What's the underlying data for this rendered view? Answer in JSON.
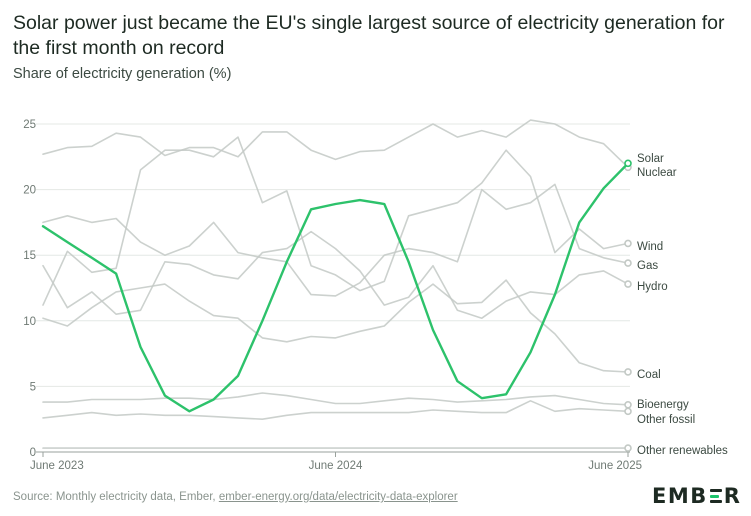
{
  "title": "Solar power just became the EU's single largest source of electricity generation for the first month on record",
  "subtitle": "Share of electricity generation (%)",
  "source": {
    "prefix": "Source: Monthly electricity data, Ember, ",
    "link": "ember-energy.org/data/electricity-data-explorer"
  },
  "logo": {
    "pre": "EMB",
    "post": "R",
    "letters": "EMBER"
  },
  "colors": {
    "solar": "#2dc26b",
    "grey": "#c3c9c5",
    "grid": "#e4e8e5",
    "axis": "#9aa29d",
    "text": "#3c4a42"
  },
  "chart_data": {
    "type": "line",
    "title": "Solar power just became the EU's single largest source of electricity generation for the first month on record",
    "ylabel": "Share of electricity generation (%)",
    "xlabel": "",
    "ylim": [
      0,
      25
    ],
    "yticks": [
      0,
      5,
      10,
      15,
      20,
      25
    ],
    "x": [
      "2023-06",
      "2023-07",
      "2023-08",
      "2023-09",
      "2023-10",
      "2023-11",
      "2023-12",
      "2024-01",
      "2024-02",
      "2024-03",
      "2024-04",
      "2024-05",
      "2024-06",
      "2024-07",
      "2024-08",
      "2024-09",
      "2024-10",
      "2024-11",
      "2024-12",
      "2025-01",
      "2025-02",
      "2025-03",
      "2025-04",
      "2025-05",
      "2025-06"
    ],
    "xticks": [
      {
        "index": 0,
        "label": "June 2023"
      },
      {
        "index": 12,
        "label": "June 2024"
      },
      {
        "index": 24,
        "label": "June 2025"
      }
    ],
    "series": [
      {
        "name": "Nuclear",
        "highlight": false,
        "values": [
          22.7,
          23.2,
          23.3,
          24.3,
          24.0,
          22.6,
          23.2,
          23.2,
          22.5,
          24.4,
          24.4,
          23.0,
          22.3,
          22.9,
          23.0,
          24.0,
          25.0,
          24.0,
          24.5,
          24.0,
          25.3,
          25.0,
          24.0,
          23.5,
          21.7
        ]
      },
      {
        "name": "Wind",
        "highlight": false,
        "values": [
          11.2,
          15.3,
          13.7,
          14.0,
          21.5,
          23.0,
          23.0,
          22.5,
          24.0,
          19.0,
          19.9,
          14.2,
          13.5,
          12.3,
          13.0,
          18.0,
          18.5,
          19.0,
          20.5,
          23.0,
          21.0,
          15.2,
          17.0,
          15.5,
          15.9
        ]
      },
      {
        "name": "Gas",
        "highlight": false,
        "values": [
          17.5,
          18.0,
          17.5,
          17.8,
          16.0,
          15.0,
          15.7,
          17.5,
          15.2,
          14.8,
          14.5,
          12.0,
          11.9,
          12.9,
          15.0,
          15.5,
          15.2,
          14.5,
          20.0,
          18.5,
          19.0,
          20.4,
          15.5,
          14.8,
          14.4
        ]
      },
      {
        "name": "Hydro",
        "highlight": false,
        "values": [
          14.2,
          11.0,
          12.2,
          10.5,
          10.8,
          14.5,
          14.3,
          13.5,
          13.2,
          15.2,
          15.5,
          16.8,
          15.5,
          13.8,
          11.2,
          11.8,
          14.2,
          10.8,
          10.2,
          11.5,
          12.2,
          12.0,
          13.5,
          13.8,
          12.8
        ]
      },
      {
        "name": "Coal",
        "highlight": false,
        "values": [
          10.2,
          9.6,
          11.0,
          12.2,
          12.5,
          12.8,
          11.5,
          10.4,
          10.2,
          8.7,
          8.4,
          8.8,
          8.7,
          9.2,
          9.6,
          11.4,
          12.8,
          11.3,
          11.4,
          13.1,
          10.6,
          9.0,
          6.8,
          6.2,
          6.1
        ]
      },
      {
        "name": "Bioenergy",
        "highlight": false,
        "values": [
          3.8,
          3.8,
          4.0,
          4.0,
          4.0,
          4.1,
          4.1,
          4.0,
          4.2,
          4.5,
          4.3,
          4.0,
          3.7,
          3.7,
          3.9,
          4.1,
          4.0,
          3.8,
          3.9,
          4.0,
          4.2,
          4.3,
          4.0,
          3.7,
          3.6
        ]
      },
      {
        "name": "Other fossil",
        "highlight": false,
        "values": [
          2.6,
          2.8,
          3.0,
          2.8,
          2.9,
          2.8,
          2.8,
          2.7,
          2.6,
          2.5,
          2.8,
          3.0,
          3.0,
          3.0,
          3.0,
          3.0,
          3.2,
          3.1,
          3.0,
          3.0,
          3.9,
          3.1,
          3.3,
          3.2,
          3.1
        ]
      },
      {
        "name": "Other renewables",
        "highlight": false,
        "values": [
          0.3,
          0.3,
          0.3,
          0.3,
          0.3,
          0.3,
          0.3,
          0.3,
          0.3,
          0.3,
          0.3,
          0.3,
          0.3,
          0.3,
          0.3,
          0.3,
          0.3,
          0.3,
          0.3,
          0.3,
          0.3,
          0.3,
          0.3,
          0.3,
          0.3
        ]
      },
      {
        "name": "Solar",
        "highlight": true,
        "values": [
          17.2,
          16.0,
          14.8,
          13.6,
          8.0,
          4.3,
          3.1,
          4.0,
          5.8,
          10.0,
          14.5,
          18.5,
          18.9,
          19.2,
          18.9,
          14.5,
          9.3,
          5.4,
          4.1,
          4.4,
          7.6,
          12.0,
          17.5,
          20.1,
          22.0
        ]
      }
    ]
  }
}
